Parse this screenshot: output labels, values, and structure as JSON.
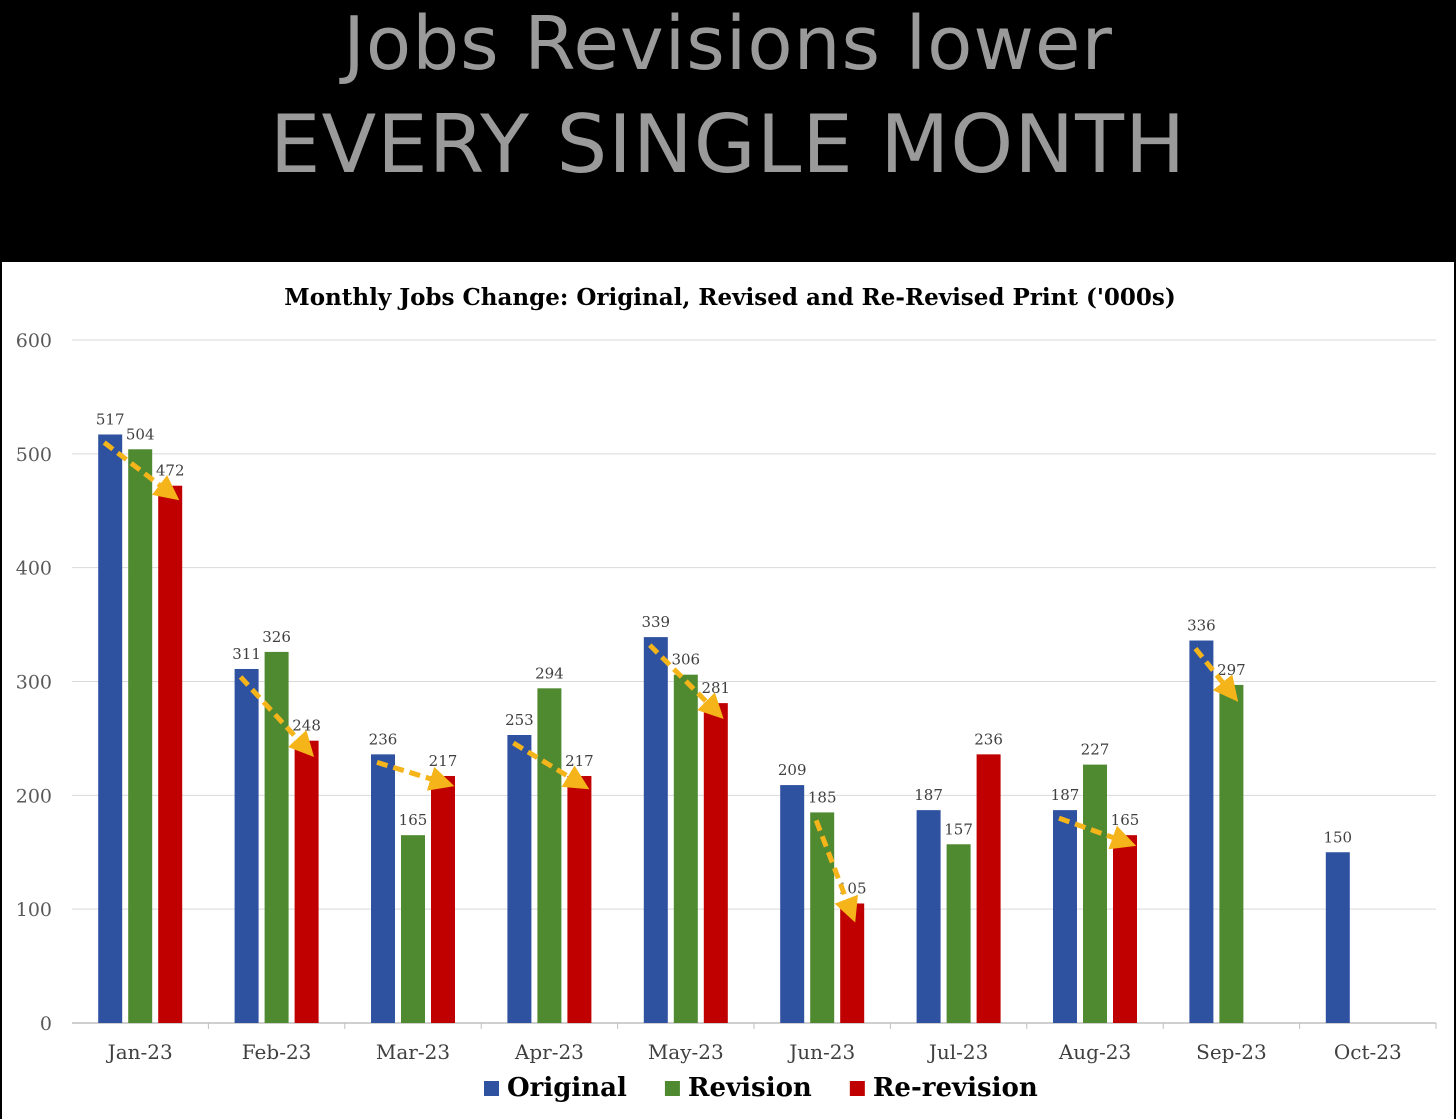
{
  "headline": {
    "line1": "Jobs Revisions lower",
    "line2": "EVERY SINGLE MONTH"
  },
  "chart_data": {
    "type": "bar",
    "title": "Monthly Jobs Change: Original, Revised and Re-Revised Print ('000s)",
    "xlabel": "",
    "ylabel": "",
    "ylim": [
      0,
      600
    ],
    "yticks": [
      0,
      100,
      200,
      300,
      400,
      500,
      600
    ],
    "grid": true,
    "legend_position": "bottom",
    "categories": [
      "Jan-23",
      "Feb-23",
      "Mar-23",
      "Apr-23",
      "May-23",
      "Jun-23",
      "Jul-23",
      "Aug-23",
      "Sep-23",
      "Oct-23"
    ],
    "series": [
      {
        "name": "Original",
        "color": "#2F52A0",
        "values": [
          517,
          311,
          236,
          253,
          339,
          209,
          187,
          187,
          336,
          150
        ]
      },
      {
        "name": "Revision",
        "color": "#4F8A30",
        "values": [
          504,
          326,
          165,
          294,
          306,
          185,
          157,
          227,
          297,
          null
        ]
      },
      {
        "name": "Re-revision",
        "color": "#C00000",
        "values": [
          472,
          248,
          217,
          217,
          281,
          105,
          236,
          165,
          null,
          null
        ]
      }
    ],
    "annotations": {
      "type": "dashed-arrow",
      "color": "#F5B41A",
      "arrows": [
        {
          "category": "Jan-23",
          "from_series": "Original",
          "to_series": "Re-revision"
        },
        {
          "category": "Feb-23",
          "from_series": "Original",
          "to_series": "Re-revision"
        },
        {
          "category": "Mar-23",
          "from_series": "Original",
          "to_series": "Re-revision"
        },
        {
          "category": "Apr-23",
          "from_series": "Original",
          "to_series": "Re-revision"
        },
        {
          "category": "May-23",
          "from_series": "Original",
          "to_series": "Re-revision"
        },
        {
          "category": "Jun-23",
          "from_series": "Revision",
          "to_series": "Re-revision"
        },
        {
          "category": "Aug-23",
          "from_series": "Original",
          "to_series": "Re-revision"
        },
        {
          "category": "Sep-23",
          "from_series": "Original",
          "to_series": "Revision"
        }
      ]
    }
  }
}
